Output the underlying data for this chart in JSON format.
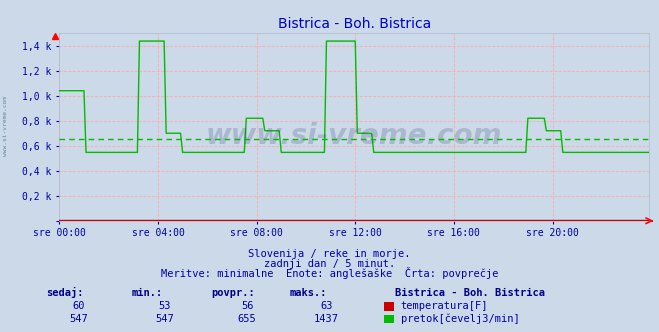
{
  "title": "Bistrica - Boh. Bistrica",
  "title_color": "#0000cc",
  "bg_color": "#ccd9e8",
  "plot_bg_color": "#ccd9e8",
  "grid_color": "#ffaaaa",
  "ylim": [
    0,
    1500
  ],
  "yticks": [
    0,
    200,
    400,
    600,
    800,
    1000,
    1200,
    1400
  ],
  "ytick_labels": [
    "",
    "0,2 k",
    "0,4 k",
    "0,6 k",
    "0,8 k",
    "1,0 k",
    "1,2 k",
    "1,4 k"
  ],
  "xtick_labels": [
    "sre 00:00",
    "sre 04:00",
    "sre 08:00",
    "sre 12:00",
    "sre 16:00",
    "sre 20:00"
  ],
  "xtick_positions": [
    0,
    48,
    96,
    144,
    192,
    240
  ],
  "n_points": 288,
  "temp_color": "#cc0000",
  "flow_color": "#00bb00",
  "avg_line_color": "#00bb00",
  "flow_avg": 655,
  "temp_min": 53,
  "temp_max": 63,
  "temp_avg": 56,
  "temp_current": 60,
  "flow_min": 547,
  "flow_max": 1437,
  "flow_current": 547,
  "footer_line1": "Slovenija / reke in morje.",
  "footer_line2": "zadnji dan / 5 minut.",
  "footer_line3": "Meritve: minimalne  Enote: anglešaške  Črta: povprečje",
  "footer_color": "#0000aa",
  "table_header_color": "#000088",
  "table_value_color": "#0000aa",
  "label_color": "#0000aa",
  "watermark_text": "www.si-vreme.com",
  "watermark_color": "#334477",
  "watermark_alpha": 0.22,
  "side_watermark": "www.si-vreme.com"
}
